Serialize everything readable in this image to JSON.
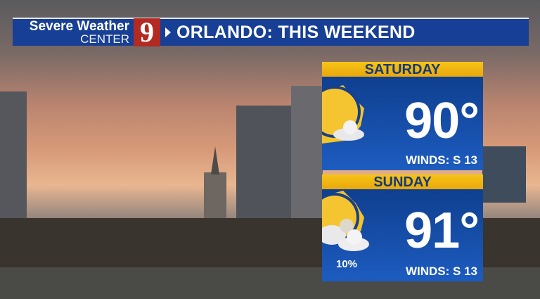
{
  "banner": {
    "brand_line1": "Severe Weather",
    "brand_line2": "CENTER",
    "channel_logo": "9",
    "title": "ORLANDO: THIS WEEKEND"
  },
  "forecast": [
    {
      "day": "SATURDAY",
      "icon": "mostly-sunny-icon",
      "temp": "90°",
      "winds": "WINDS: S 13"
    },
    {
      "day": "SUNDAY",
      "icon": "partly-cloudy-icon",
      "temp": "91°",
      "precip": "10%",
      "winds": "WINDS: S 13"
    }
  ],
  "colors": {
    "banner_blue": "#173f95",
    "logo_red": "#b22a22",
    "header_yellow": "#f6c417",
    "card_blue": "#1d5cc0"
  }
}
